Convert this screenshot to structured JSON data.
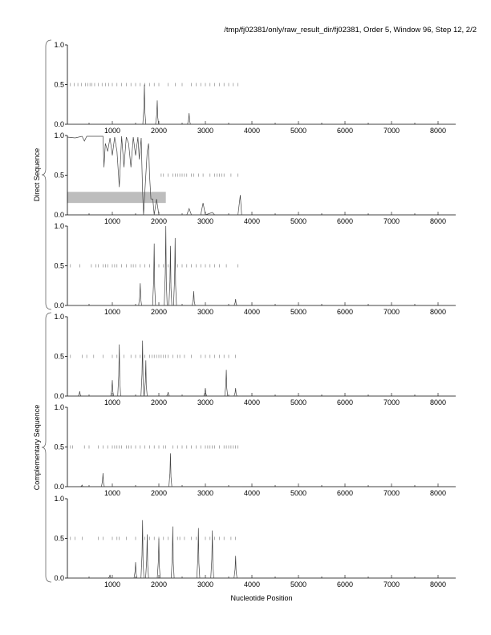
{
  "chart_data": {
    "type": "line",
    "title": "/tmp/fj02381/only/raw_result_dir/fj02381, Order 5, Window 96, Step 12, 2/2",
    "xlabel": "Nucleotide Position",
    "group_labels": [
      "Direct Sequence",
      "Complementary Sequence"
    ],
    "xlim": [
      30,
      8400
    ],
    "ylim": [
      0,
      1
    ],
    "x_ticks": [
      "1000",
      "2000",
      "3000",
      "4000",
      "5000",
      "6000",
      "7000",
      "8000"
    ],
    "x_tick_values": [
      1000,
      2000,
      3000,
      4000,
      5000,
      6000,
      7000,
      8000
    ],
    "y_ticks": [
      "0.0",
      "0.5",
      "1.0"
    ],
    "y_tick_values": [
      0,
      0.5,
      1
    ],
    "panels": [
      {
        "group": "Direct Sequence",
        "frame": 1,
        "peaks": [
          [
            1690,
            0.5
          ],
          [
            1965,
            0.3
          ],
          [
            2650,
            0.14
          ]
        ],
        "orf_ticks": [
          100,
          180,
          260,
          340,
          420,
          470,
          520,
          560,
          620,
          700,
          780,
          850,
          920,
          1000,
          1100,
          1200,
          1300,
          1400,
          1500,
          1600,
          1700,
          1800,
          1900,
          2000,
          2200,
          2350,
          2500,
          2700,
          2800,
          2900,
          3000,
          3100,
          3200,
          3300,
          3400,
          3500,
          3600,
          3700
        ]
      },
      {
        "group": "Direct Sequence",
        "frame": 2,
        "trace": [
          [
            30,
            0.98
          ],
          [
            200,
            0.97
          ],
          [
            350,
            0.99
          ],
          [
            400,
            0.93
          ],
          [
            450,
            0.99
          ],
          [
            800,
            0.99
          ],
          [
            820,
            0.6
          ],
          [
            850,
            0.9
          ],
          [
            900,
            0.8
          ],
          [
            950,
            0.97
          ],
          [
            1000,
            0.75
          ],
          [
            1050,
            0.98
          ],
          [
            1100,
            0.8
          ],
          [
            1150,
            0.35
          ],
          [
            1200,
            0.99
          ],
          [
            1250,
            0.6
          ],
          [
            1300,
            0.98
          ],
          [
            1350,
            0.9
          ],
          [
            1400,
            0.6
          ],
          [
            1450,
            0.98
          ],
          [
            1500,
            0.75
          ],
          [
            1550,
            0.98
          ],
          [
            1580,
            0.7
          ],
          [
            1620,
            0.97
          ],
          [
            1650,
            0.3
          ],
          [
            1670,
            0.0
          ],
          [
            1700,
            0.3
          ],
          [
            1750,
            0.8
          ],
          [
            1780,
            0.9
          ],
          [
            1800,
            0.5
          ],
          [
            1830,
            0.2
          ],
          [
            1870,
            0.2
          ],
          [
            1900,
            0.0
          ],
          [
            1950,
            0.2
          ],
          [
            2000,
            0.0
          ],
          [
            2600,
            0.0
          ],
          [
            2650,
            0.08
          ],
          [
            2700,
            0.0
          ],
          [
            2900,
            0.0
          ],
          [
            2950,
            0.15
          ],
          [
            3000,
            0.0
          ],
          [
            3150,
            0.03
          ],
          [
            3200,
            0.0
          ],
          [
            3700,
            0.0
          ],
          [
            3750,
            0.25
          ],
          [
            3780,
            0.0
          ],
          [
            3800,
            0.0
          ]
        ],
        "band": {
          "x": [
            30,
            2150
          ],
          "y": [
            0.15,
            0.29
          ]
        },
        "orf_ticks": [
          2050,
          2100,
          2200,
          2300,
          2350,
          2400,
          2450,
          2500,
          2550,
          2600,
          2700,
          2750,
          2850,
          2950,
          3100,
          3200,
          3250,
          3300,
          3350,
          3400,
          3550,
          3700
        ]
      },
      {
        "group": "Direct Sequence",
        "frame": 3,
        "peaks": [
          [
            1600,
            0.28
          ],
          [
            1900,
            0.78
          ],
          [
            2150,
            1.0
          ],
          [
            2250,
            0.75
          ],
          [
            2350,
            0.85
          ],
          [
            2750,
            0.18
          ],
          [
            3650,
            0.08
          ]
        ],
        "orf_ticks": [
          100,
          300,
          550,
          650,
          700,
          800,
          850,
          900,
          1000,
          1050,
          1100,
          1200,
          1300,
          1400,
          1450,
          1500,
          1600,
          1700,
          1800,
          2000,
          2100,
          2200,
          2400,
          2500,
          2600,
          2700,
          2800,
          2900,
          3000,
          3100,
          3200,
          3300,
          3450,
          3700
        ]
      },
      {
        "group": "Complementary Sequence",
        "frame": 1,
        "peaks": [
          [
            300,
            0.06
          ],
          [
            1000,
            0.2
          ],
          [
            1150,
            0.65
          ],
          [
            1650,
            0.7
          ],
          [
            1720,
            0.45
          ],
          [
            2200,
            0.05
          ],
          [
            3000,
            0.1
          ],
          [
            3450,
            0.33
          ],
          [
            3650,
            0.1
          ]
        ],
        "orf_ticks": [
          100,
          350,
          450,
          600,
          800,
          1000,
          1100,
          1250,
          1400,
          1500,
          1600,
          1700,
          1800,
          1850,
          1900,
          1950,
          2000,
          2050,
          2100,
          2150,
          2200,
          2300,
          2400,
          2450,
          2550,
          2700,
          2900,
          3000,
          3100,
          3200,
          3300,
          3400,
          3500,
          3650
        ]
      },
      {
        "group": "Complementary Sequence",
        "frame": 2,
        "peaks": [
          [
            350,
            0.02
          ],
          [
            800,
            0.17
          ],
          [
            2250,
            0.42
          ]
        ],
        "orf_ticks": [
          100,
          150,
          400,
          500,
          700,
          800,
          900,
          1000,
          1050,
          1100,
          1150,
          1200,
          1300,
          1350,
          1400,
          1500,
          1600,
          1700,
          1800,
          1900,
          2000,
          2100,
          2150,
          2300,
          2400,
          2500,
          2600,
          2700,
          2800,
          2900,
          3000,
          3050,
          3100,
          3150,
          3200,
          3300,
          3400,
          3450,
          3500,
          3550,
          3600,
          3650,
          3700
        ]
      },
      {
        "group": "Complementary Sequence",
        "frame": 3,
        "peaks": [
          [
            950,
            0.04
          ],
          [
            1500,
            0.2
          ],
          [
            1650,
            0.73
          ],
          [
            1750,
            0.55
          ],
          [
            2000,
            0.5
          ],
          [
            2300,
            0.65
          ],
          [
            2850,
            0.63
          ],
          [
            3150,
            0.6
          ],
          [
            3650,
            0.28
          ]
        ],
        "orf_ticks": [
          100,
          200,
          350,
          700,
          800,
          1000,
          1100,
          1150,
          1300,
          1500,
          1700,
          1800,
          1900,
          2000,
          2100,
          2200,
          2300,
          2400,
          2450,
          2550,
          2700,
          2800,
          2850,
          3000,
          3100,
          3200,
          3300,
          3400,
          3550,
          3650
        ]
      }
    ]
  }
}
